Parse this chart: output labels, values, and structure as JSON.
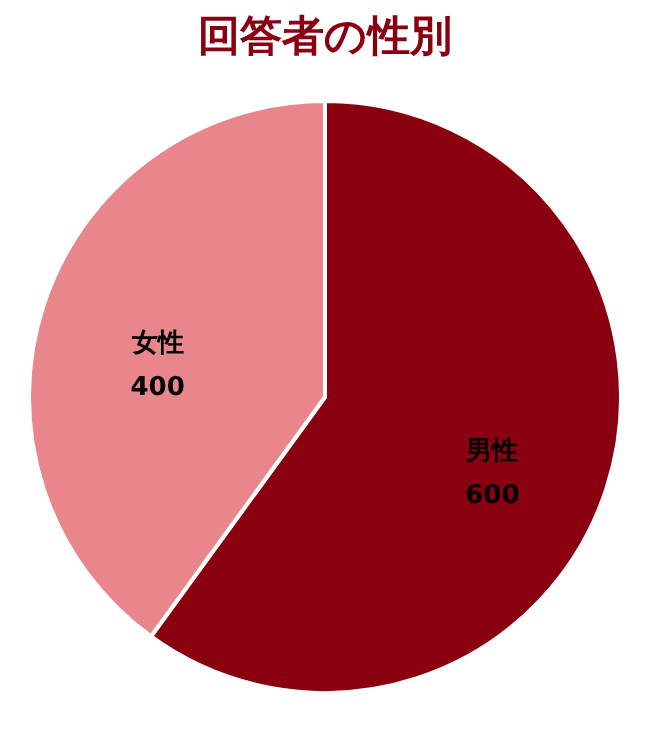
{
  "chart_data": {
    "type": "pie",
    "title": "回答者の性別",
    "categories": [
      "男性",
      "女性"
    ],
    "values": [
      600,
      400
    ],
    "colors": [
      "#8b0011",
      "#e8868b"
    ],
    "data_labels": true
  }
}
